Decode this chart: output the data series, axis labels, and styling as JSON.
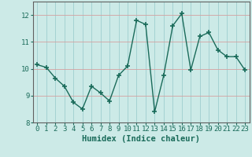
{
  "x": [
    0,
    1,
    2,
    3,
    4,
    5,
    6,
    7,
    8,
    9,
    10,
    11,
    12,
    13,
    14,
    15,
    16,
    17,
    18,
    19,
    20,
    21,
    22,
    23
  ],
  "y": [
    10.15,
    10.05,
    9.65,
    9.35,
    8.75,
    8.5,
    9.35,
    9.1,
    8.8,
    9.75,
    10.1,
    11.8,
    11.65,
    8.4,
    9.75,
    11.6,
    12.05,
    9.95,
    11.2,
    11.35,
    10.7,
    10.45,
    10.45,
    9.95
  ],
  "line_color": "#1a6b5a",
  "marker": "+",
  "markersize": 4,
  "markeredgewidth": 1.2,
  "linewidth": 1.0,
  "xlabel": "Humidex (Indice chaleur)",
  "xlim": [
    -0.5,
    23.5
  ],
  "ylim": [
    8,
    12.5
  ],
  "yticks": [
    8,
    9,
    10,
    11,
    12
  ],
  "xticks": [
    0,
    1,
    2,
    3,
    4,
    5,
    6,
    7,
    8,
    9,
    10,
    11,
    12,
    13,
    14,
    15,
    16,
    17,
    18,
    19,
    20,
    21,
    22,
    23
  ],
  "bg_color": "#cceae7",
  "grid_color_h": "#d4a0a0",
  "grid_color_v": "#9ecece",
  "axis_color": "#606060",
  "xlabel_fontsize": 7.5,
  "tick_fontsize": 6.5,
  "tick_color": "#1a6b5a"
}
